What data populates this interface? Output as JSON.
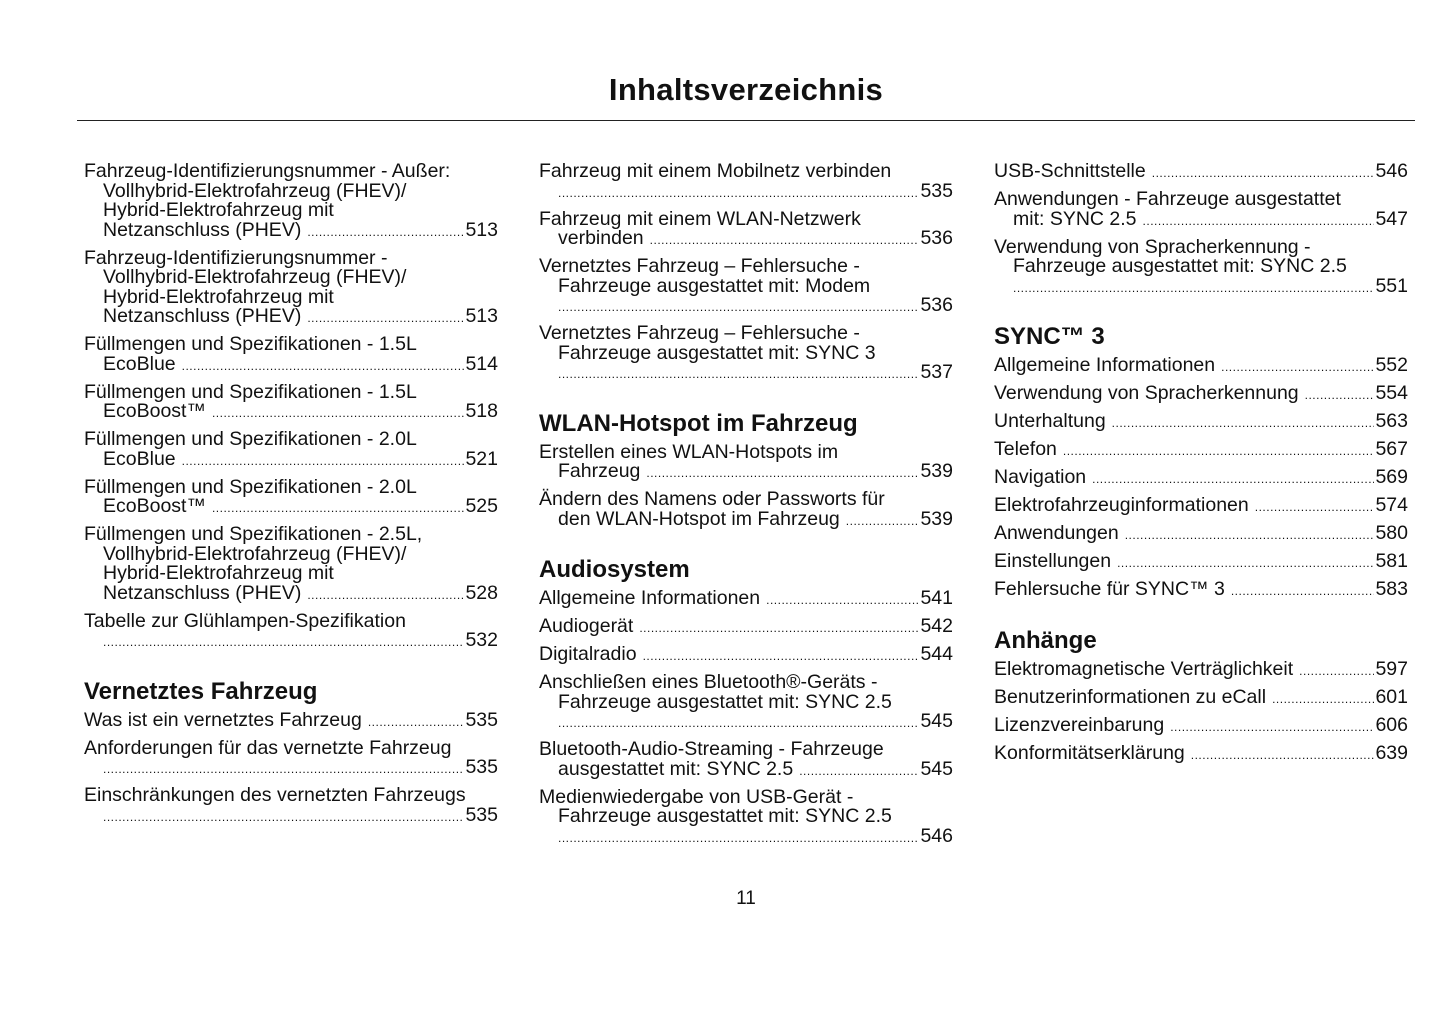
{
  "title": "Inhaltsverzeichnis",
  "page_number": "11",
  "columns": [
    {
      "blocks": [
        {
          "type": "entry",
          "lines": [
            "Fahrzeug-Identifizierungsnummer - Außer:",
            "Vollhybrid-Elektrofahrzeug (FHEV)/",
            "Hybrid-Elektrofahrzeug mit",
            "Netzanschluss (PHEV)"
          ],
          "page": "513"
        },
        {
          "type": "entry",
          "lines": [
            "Fahrzeug-Identifizierungsnummer -",
            "Vollhybrid-Elektrofahrzeug (FHEV)/",
            "Hybrid-Elektrofahrzeug mit",
            "Netzanschluss (PHEV)"
          ],
          "page": "513"
        },
        {
          "type": "entry",
          "lines": [
            "Füllmengen und Spezifikationen - 1.5L",
            "EcoBlue"
          ],
          "page": "514"
        },
        {
          "type": "entry",
          "lines": [
            "Füllmengen und Spezifikationen - 1.5L",
            "EcoBoost™"
          ],
          "page": "518"
        },
        {
          "type": "entry",
          "lines": [
            "Füllmengen und Spezifikationen - 2.0L",
            "EcoBlue"
          ],
          "page": "521"
        },
        {
          "type": "entry",
          "lines": [
            "Füllmengen und Spezifikationen - 2.0L",
            "EcoBoost™"
          ],
          "page": "525"
        },
        {
          "type": "entry",
          "lines": [
            "Füllmengen und Spezifikationen - 2.5L,",
            "Vollhybrid-Elektrofahrzeug (FHEV)/",
            "Hybrid-Elektrofahrzeug mit",
            "Netzanschluss (PHEV)"
          ],
          "page": "528"
        },
        {
          "type": "entry",
          "lines": [
            "Tabelle zur Glühlampen-Spezifikation",
            ""
          ],
          "page": "532"
        },
        {
          "type": "heading",
          "text": "Vernetztes Fahrzeug"
        },
        {
          "type": "entry",
          "lines": [
            "Was ist ein vernetztes Fahrzeug"
          ],
          "page": "535"
        },
        {
          "type": "entry",
          "lines": [
            "Anforderungen für das vernetzte Fahrzeug",
            ""
          ],
          "page": "535"
        },
        {
          "type": "entry",
          "lines": [
            "Einschränkungen des vernetzten Fahrzeugs",
            ""
          ],
          "page": "535"
        }
      ]
    },
    {
      "blocks": [
        {
          "type": "entry",
          "lines": [
            "Fahrzeug mit einem Mobilnetz verbinden",
            ""
          ],
          "page": "535"
        },
        {
          "type": "entry",
          "lines": [
            "Fahrzeug mit einem WLAN-Netzwerk",
            "verbinden"
          ],
          "page": "536"
        },
        {
          "type": "entry",
          "lines": [
            "Vernetztes Fahrzeug – Fehlersuche -",
            "Fahrzeuge ausgestattet mit: Modem",
            ""
          ],
          "page": "536"
        },
        {
          "type": "entry",
          "lines": [
            "Vernetztes Fahrzeug – Fehlersuche -",
            "Fahrzeuge ausgestattet mit: SYNC 3",
            ""
          ],
          "page": "537"
        },
        {
          "type": "heading",
          "text": "WLAN-Hotspot im Fahrzeug"
        },
        {
          "type": "entry",
          "lines": [
            "Erstellen eines WLAN-Hotspots im",
            "Fahrzeug"
          ],
          "page": "539"
        },
        {
          "type": "entry",
          "lines": [
            "Ändern des Namens oder Passworts für",
            "den WLAN-Hotspot im Fahrzeug"
          ],
          "page": "539"
        },
        {
          "type": "heading",
          "text": "Audiosystem"
        },
        {
          "type": "entry",
          "lines": [
            "Allgemeine Informationen"
          ],
          "page": "541"
        },
        {
          "type": "entry",
          "lines": [
            "Audiogerät"
          ],
          "page": "542"
        },
        {
          "type": "entry",
          "lines": [
            "Digitalradio"
          ],
          "page": "544"
        },
        {
          "type": "entry",
          "lines": [
            "Anschließen eines Bluetooth®-Geräts -",
            "Fahrzeuge ausgestattet mit: SYNC 2.5",
            ""
          ],
          "page": "545"
        },
        {
          "type": "entry",
          "lines": [
            "Bluetooth-Audio-Streaming - Fahrzeuge",
            "ausgestattet mit: SYNC 2.5"
          ],
          "page": "545"
        },
        {
          "type": "entry",
          "lines": [
            "Medienwiedergabe von USB-Gerät -",
            "Fahrzeuge ausgestattet mit: SYNC 2.5",
            ""
          ],
          "page": "546"
        }
      ]
    },
    {
      "blocks": [
        {
          "type": "entry",
          "lines": [
            "USB-Schnittstelle"
          ],
          "page": "546"
        },
        {
          "type": "entry",
          "lines": [
            "Anwendungen - Fahrzeuge ausgestattet",
            "mit: SYNC 2.5"
          ],
          "page": "547"
        },
        {
          "type": "entry",
          "lines": [
            "Verwendung von Spracherkennung -",
            "Fahrzeuge ausgestattet mit: SYNC 2.5",
            ""
          ],
          "page": "551"
        },
        {
          "type": "heading",
          "text": "SYNC™ 3"
        },
        {
          "type": "entry",
          "lines": [
            "Allgemeine Informationen"
          ],
          "page": "552"
        },
        {
          "type": "entry",
          "lines": [
            "Verwendung von Spracherkennung"
          ],
          "page": "554"
        },
        {
          "type": "entry",
          "lines": [
            "Unterhaltung"
          ],
          "page": "563"
        },
        {
          "type": "entry",
          "lines": [
            "Telefon"
          ],
          "page": "567"
        },
        {
          "type": "entry",
          "lines": [
            "Navigation"
          ],
          "page": "569"
        },
        {
          "type": "entry",
          "lines": [
            "Elektrofahrzeuginformationen"
          ],
          "page": "574"
        },
        {
          "type": "entry",
          "lines": [
            "Anwendungen"
          ],
          "page": "580"
        },
        {
          "type": "entry",
          "lines": [
            "Einstellungen"
          ],
          "page": "581"
        },
        {
          "type": "entry",
          "lines": [
            "Fehlersuche für SYNC™ 3"
          ],
          "page": "583"
        },
        {
          "type": "heading",
          "text": "Anhänge"
        },
        {
          "type": "entry",
          "lines": [
            "Elektromagnetische Verträglichkeit"
          ],
          "page": "597"
        },
        {
          "type": "entry",
          "lines": [
            "Benutzerinformationen zu eCall"
          ],
          "page": "601"
        },
        {
          "type": "entry",
          "lines": [
            "Lizenzvereinbarung"
          ],
          "page": "606"
        },
        {
          "type": "entry",
          "lines": [
            "Konformitätserklärung"
          ],
          "page": "639"
        }
      ]
    }
  ]
}
